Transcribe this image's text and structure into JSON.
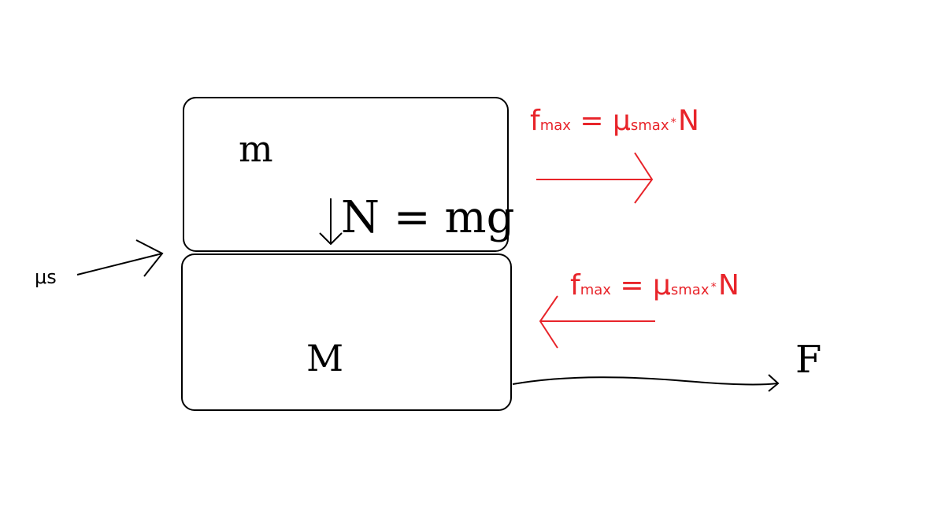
{
  "upper_block": {
    "label": "m"
  },
  "lower_block": {
    "label": "M"
  },
  "normal_force": {
    "text": "N = mg"
  },
  "friction_coefficient": {
    "label": "μs"
  },
  "applied_force": {
    "label": "F"
  },
  "friction_upper": {
    "f": "f",
    "f_sub": "max",
    "equals": "=",
    "mu": "μ",
    "mu_sub": "smax",
    "star": "*",
    "n": "N"
  },
  "friction_lower": {
    "f": "f",
    "f_sub": "max",
    "equals": "=",
    "mu": "μ",
    "mu_sub": "smax",
    "star": "*",
    "n": "N"
  },
  "colors": {
    "outline": "#000000",
    "friction": "#e8242a",
    "background": "#ffffff"
  }
}
